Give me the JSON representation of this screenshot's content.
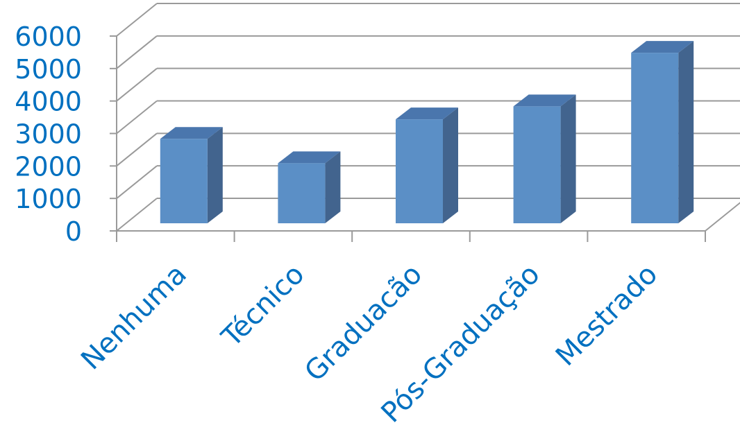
{
  "chart_data": {
    "type": "bar",
    "style": "3d-column",
    "categories": [
      "Nenhuma",
      "Técnico",
      "Graduacão",
      "Pós-Graduação",
      "Mestrado"
    ],
    "values": [
      2600,
      1850,
      3200,
      3600,
      5250
    ],
    "y_ticks": [
      "0",
      "1000",
      "2000",
      "3000",
      "4000",
      "5000",
      "6000"
    ],
    "ylim": [
      0,
      6000
    ],
    "grid": true,
    "legend": "none",
    "colors": {
      "bar_front": "#5b8fc6",
      "bar_side": "#42648e",
      "bar_top": "#4a76ad",
      "grid": "#9a9a9a",
      "label": "#0070c0"
    }
  }
}
